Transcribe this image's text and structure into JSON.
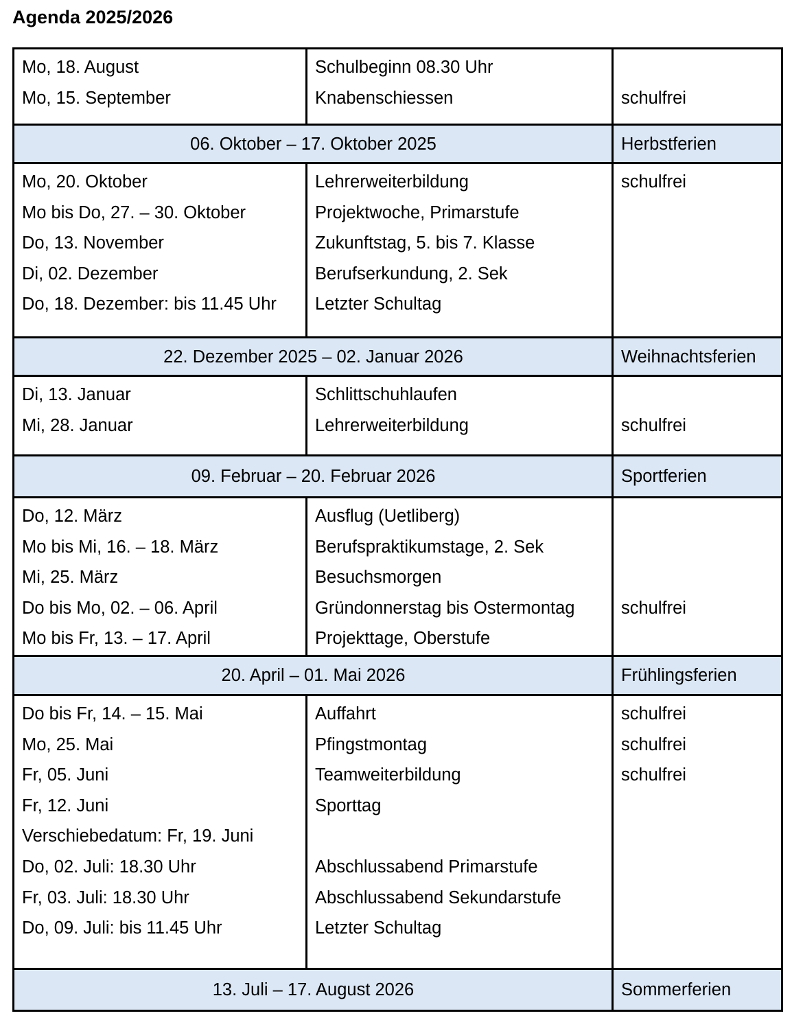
{
  "title": "Agenda 2025/2026",
  "colors": {
    "band_background": "#dbe7f5",
    "border": "#000000"
  },
  "sections": [
    {
      "type": "rows",
      "lines": [
        {
          "date": "Mo, 18. August",
          "event": "Schulbeginn 08.30 Uhr",
          "note": ""
        },
        {
          "date": "Mo, 15. September",
          "event": "Knabenschiessen",
          "note": "schulfrei"
        }
      ]
    },
    {
      "type": "band",
      "range": "06. Oktober – 17. Oktober 2025",
      "label": "Herbstferien"
    },
    {
      "type": "rows",
      "lines": [
        {
          "date": "Mo, 20. Oktober",
          "event": "Lehrerweiterbildung",
          "note": "schulfrei"
        },
        {
          "date": "Mo bis Do, 27. – 30. Oktober",
          "event": "Projektwoche, Primarstufe",
          "note": ""
        },
        {
          "date": "Do, 13. November",
          "event": "Zukunftstag, 5. bis 7. Klasse",
          "note": ""
        },
        {
          "date": "Di, 02. Dezember",
          "event": "Berufserkundung, 2. Sek",
          "note": ""
        },
        {
          "date": "Do, 18. Dezember: bis 11.45 Uhr",
          "event": "Letzter Schultag",
          "note": ""
        }
      ]
    },
    {
      "type": "band",
      "range": "22. Dezember 2025 – 02. Januar 2026",
      "label": "Weihnachtsferien"
    },
    {
      "type": "rows",
      "lines": [
        {
          "date": "Di, 13. Januar",
          "event": "Schlittschuhlaufen",
          "note": ""
        },
        {
          "date": "Mi, 28. Januar",
          "event": "Lehrerweiterbildung",
          "note": "schulfrei"
        }
      ]
    },
    {
      "type": "band",
      "range": "09. Februar – 20. Februar 2026",
      "label": "Sportferien"
    },
    {
      "type": "rows",
      "lines": [
        {
          "date": "Do, 12. März",
          "event": "Ausflug (Uetliberg)",
          "note": ""
        },
        {
          "date": "Mo bis Mi, 16. – 18. März",
          "event": "Berufspraktikumstage, 2. Sek",
          "note": ""
        },
        {
          "date": "Mi, 25. März",
          "event": "Besuchsmorgen",
          "note": ""
        },
        {
          "date": "Do bis Mo, 02. – 06. April",
          "event": "Gründonnerstag bis Ostermontag",
          "note": "schulfrei"
        },
        {
          "date": "Mo bis Fr, 13. – 17. April",
          "event": "Projekttage, Oberstufe",
          "note": ""
        }
      ]
    },
    {
      "type": "band",
      "range": "20. April – 01. Mai 2026",
      "label": "Frühlingsferien"
    },
    {
      "type": "rows",
      "lines": [
        {
          "date": "Do bis Fr, 14. – 15. Mai",
          "event": "Auffahrt",
          "note": "schulfrei"
        },
        {
          "date": "Mo, 25. Mai",
          "event": "Pfingstmontag",
          "note": "schulfrei"
        },
        {
          "date": "Fr, 05. Juni",
          "event": "Teamweiterbildung",
          "note": "schulfrei"
        },
        {
          "date": "Fr, 12. Juni",
          "event": "Sporttag",
          "note": ""
        },
        {
          "date": "Verschiebedatum: Fr, 19. Juni",
          "event": "",
          "note": ""
        },
        {
          "date": "Do, 02. Juli: 18.30 Uhr",
          "event": "Abschlussabend Primarstufe",
          "note": ""
        },
        {
          "date": "Fr, 03. Juli: 18.30 Uhr",
          "event": "Abschlussabend Sekundarstufe",
          "note": ""
        },
        {
          "date": "Do, 09. Juli: bis 11.45 Uhr",
          "event": "Letzter Schultag",
          "note": ""
        }
      ]
    },
    {
      "type": "band",
      "range": "13. Juli – 17. August 2026",
      "label": "Sommerferien"
    }
  ]
}
